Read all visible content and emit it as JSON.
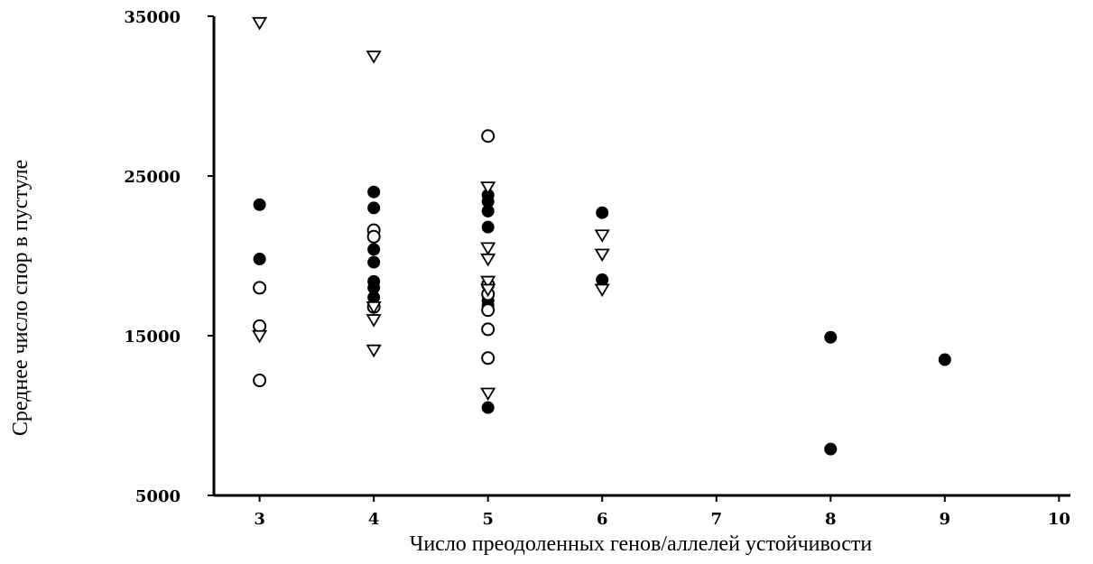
{
  "chart_data": {
    "type": "scatter",
    "title": "",
    "xlabel": "Число преодоленных генов/аллелей устойчивости",
    "ylabel": "Среднее число спор в пустуле",
    "xlim": [
      2.6,
      10.1
    ],
    "ylim": [
      5000,
      35000
    ],
    "x_ticks": [
      3,
      4,
      5,
      6,
      7,
      8,
      9,
      10
    ],
    "y_ticks": [
      5000,
      15000,
      25000,
      35000
    ],
    "grid": false,
    "legend": "none",
    "marker_color": "#000000",
    "series": [
      {
        "marker": "filled-circle",
        "points": [
          [
            3,
            23200
          ],
          [
            3,
            19800
          ],
          [
            4,
            24000
          ],
          [
            4,
            23000
          ],
          [
            4,
            20400
          ],
          [
            4,
            19600
          ],
          [
            4,
            18400
          ],
          [
            4,
            18000
          ],
          [
            4,
            17400
          ],
          [
            5,
            23800
          ],
          [
            5,
            23400
          ],
          [
            5,
            22800
          ],
          [
            5,
            21800
          ],
          [
            5,
            17200
          ],
          [
            5,
            16900
          ],
          [
            5,
            10500
          ],
          [
            6,
            22700
          ],
          [
            6,
            18500
          ],
          [
            8,
            14900
          ],
          [
            8,
            7900
          ],
          [
            9,
            13500
          ]
        ]
      },
      {
        "marker": "open-circle",
        "points": [
          [
            3,
            18000
          ],
          [
            3,
            15600
          ],
          [
            3,
            12200
          ],
          [
            4,
            21600
          ],
          [
            4,
            21200
          ],
          [
            4,
            16800
          ],
          [
            5,
            27500
          ],
          [
            5,
            18200
          ],
          [
            5,
            17600
          ],
          [
            5,
            16600
          ],
          [
            5,
            15400
          ],
          [
            5,
            13600
          ]
        ]
      },
      {
        "marker": "open-triangle",
        "points": [
          [
            3,
            34600
          ],
          [
            3,
            15000
          ],
          [
            4,
            32500
          ],
          [
            4,
            16800
          ],
          [
            4,
            16000
          ],
          [
            4,
            14100
          ],
          [
            5,
            24300
          ],
          [
            5,
            20500
          ],
          [
            5,
            19800
          ],
          [
            5,
            18400
          ],
          [
            5,
            17900
          ],
          [
            5,
            11400
          ],
          [
            6,
            21300
          ],
          [
            6,
            20100
          ],
          [
            6,
            17900
          ]
        ]
      }
    ]
  }
}
